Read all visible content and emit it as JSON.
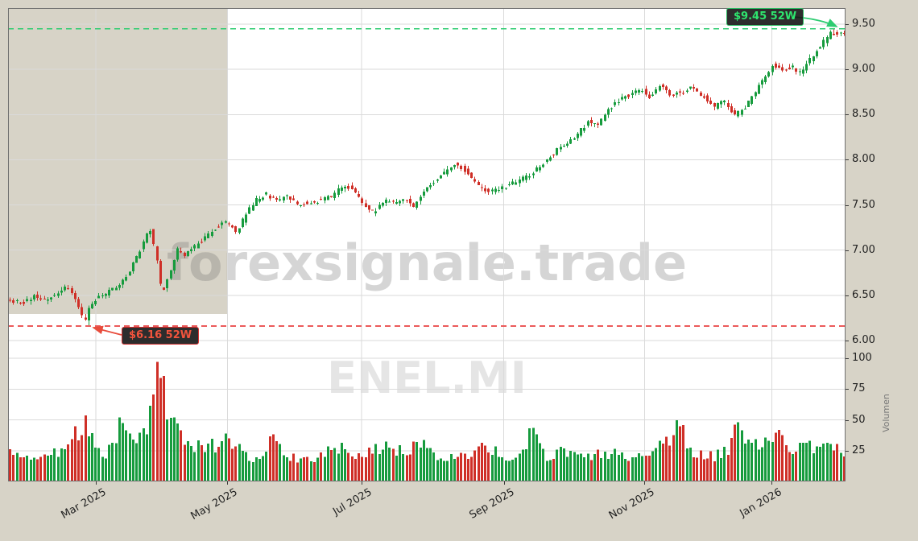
{
  "watermarks": {
    "site": "forexsignale.trade",
    "symbol": "ENEL.MI"
  },
  "annotations": {
    "high": {
      "label": "$9.45 52W",
      "price": 9.45
    },
    "low": {
      "label": "$6.16 52W",
      "price": 6.16
    }
  },
  "axes": {
    "price": {
      "ticks": [
        {
          "label": "9.50",
          "value": 9.5
        },
        {
          "label": "9.00",
          "value": 9.0
        },
        {
          "label": "8.50",
          "value": 8.5
        },
        {
          "label": "8.00",
          "value": 8.0
        },
        {
          "label": "7.50",
          "value": 7.5
        },
        {
          "label": "7.00",
          "value": 7.0
        },
        {
          "label": "6.50",
          "value": 6.5
        },
        {
          "label": "6.00",
          "value": 6.0
        }
      ]
    },
    "volume": {
      "axis_label": "Volumen",
      "ticks": [
        {
          "label": "100",
          "value": 100
        },
        {
          "label": "75",
          "value": 75
        },
        {
          "label": "50",
          "value": 50
        },
        {
          "label": "25",
          "value": 25
        }
      ]
    },
    "x": {
      "ticks": [
        {
          "label": "Mar 2025",
          "t": 0.105
        },
        {
          "label": "May 2025",
          "t": 0.262
        },
        {
          "label": "Jul 2025",
          "t": 0.422
        },
        {
          "label": "Sep 2025",
          "t": 0.592
        },
        {
          "label": "Nov 2025",
          "t": 0.76
        },
        {
          "label": "Jan 2026",
          "t": 0.912
        }
      ]
    }
  },
  "colors": {
    "background": "#d7d3c7",
    "plot_bg": "#ffffff",
    "grid": "#dadada",
    "candle_up": "#169b3d",
    "candle_down": "#cf2f27",
    "high_line": "#2ecc71",
    "low_line": "#ec5a5a"
  },
  "chart_data": {
    "type": "candlestick+volume",
    "symbol": "ENEL.MI",
    "price_ylim": [
      6.0,
      9.5
    ],
    "volume_ylim": [
      0,
      100
    ],
    "high_52w": 9.45,
    "low_52w": 6.16,
    "low_t": 0.093,
    "high_t": 0.985,
    "candles_count": 245,
    "seed": 11,
    "price_path": [
      [
        0,
        6.45
      ],
      [
        0.02,
        6.42
      ],
      [
        0.034,
        6.5
      ],
      [
        0.048,
        6.45
      ],
      [
        0.063,
        6.55
      ],
      [
        0.075,
        6.6
      ],
      [
        0.085,
        6.38
      ],
      [
        0.093,
        6.2
      ],
      [
        0.098,
        6.35
      ],
      [
        0.105,
        6.45
      ],
      [
        0.115,
        6.5
      ],
      [
        0.13,
        6.58
      ],
      [
        0.142,
        6.7
      ],
      [
        0.154,
        6.9
      ],
      [
        0.165,
        7.12
      ],
      [
        0.171,
        7.25
      ],
      [
        0.179,
        6.9
      ],
      [
        0.185,
        6.52
      ],
      [
        0.19,
        6.62
      ],
      [
        0.197,
        6.82
      ],
      [
        0.204,
        7.0
      ],
      [
        0.213,
        6.95
      ],
      [
        0.226,
        7.05
      ],
      [
        0.238,
        7.15
      ],
      [
        0.25,
        7.25
      ],
      [
        0.262,
        7.32
      ],
      [
        0.274,
        7.2
      ],
      [
        0.287,
        7.42
      ],
      [
        0.298,
        7.56
      ],
      [
        0.31,
        7.62
      ],
      [
        0.322,
        7.55
      ],
      [
        0.335,
        7.6
      ],
      [
        0.348,
        7.5
      ],
      [
        0.361,
        7.53
      ],
      [
        0.375,
        7.55
      ],
      [
        0.389,
        7.6
      ],
      [
        0.402,
        7.72
      ],
      [
        0.412,
        7.68
      ],
      [
        0.425,
        7.52
      ],
      [
        0.438,
        7.42
      ],
      [
        0.45,
        7.55
      ],
      [
        0.464,
        7.52
      ],
      [
        0.476,
        7.58
      ],
      [
        0.486,
        7.48
      ],
      [
        0.498,
        7.65
      ],
      [
        0.512,
        7.78
      ],
      [
        0.525,
        7.88
      ],
      [
        0.537,
        7.96
      ],
      [
        0.548,
        7.87
      ],
      [
        0.562,
        7.72
      ],
      [
        0.573,
        7.65
      ],
      [
        0.587,
        7.68
      ],
      [
        0.6,
        7.72
      ],
      [
        0.613,
        7.78
      ],
      [
        0.627,
        7.85
      ],
      [
        0.64,
        7.96
      ],
      [
        0.654,
        8.08
      ],
      [
        0.667,
        8.18
      ],
      [
        0.681,
        8.28
      ],
      [
        0.694,
        8.42
      ],
      [
        0.706,
        8.38
      ],
      [
        0.719,
        8.55
      ],
      [
        0.733,
        8.68
      ],
      [
        0.746,
        8.72
      ],
      [
        0.758,
        8.78
      ],
      [
        0.769,
        8.68
      ],
      [
        0.781,
        8.85
      ],
      [
        0.792,
        8.72
      ],
      [
        0.806,
        8.75
      ],
      [
        0.819,
        8.8
      ],
      [
        0.832,
        8.7
      ],
      [
        0.844,
        8.58
      ],
      [
        0.856,
        8.65
      ],
      [
        0.869,
        8.48
      ],
      [
        0.881,
        8.58
      ],
      [
        0.892,
        8.72
      ],
      [
        0.904,
        8.9
      ],
      [
        0.915,
        9.05
      ],
      [
        0.927,
        9.0
      ],
      [
        0.938,
        9.03
      ],
      [
        0.948,
        8.95
      ],
      [
        0.96,
        9.12
      ],
      [
        0.971,
        9.25
      ],
      [
        0.983,
        9.4
      ],
      [
        0.994,
        9.38
      ],
      [
        1,
        9.4
      ]
    ],
    "volume_path": [
      [
        0,
        22
      ],
      [
        0.03,
        18
      ],
      [
        0.06,
        24
      ],
      [
        0.08,
        38
      ],
      [
        0.088,
        46
      ],
      [
        0.095,
        38
      ],
      [
        0.105,
        28
      ],
      [
        0.115,
        22
      ],
      [
        0.125,
        32
      ],
      [
        0.132,
        58
      ],
      [
        0.14,
        36
      ],
      [
        0.15,
        26
      ],
      [
        0.163,
        44
      ],
      [
        0.171,
        58
      ],
      [
        0.176,
        100
      ],
      [
        0.182,
        74
      ],
      [
        0.19,
        55
      ],
      [
        0.197,
        48
      ],
      [
        0.205,
        40
      ],
      [
        0.215,
        30
      ],
      [
        0.23,
        26
      ],
      [
        0.25,
        30
      ],
      [
        0.262,
        34
      ],
      [
        0.275,
        24
      ],
      [
        0.29,
        18
      ],
      [
        0.303,
        26
      ],
      [
        0.315,
        36
      ],
      [
        0.33,
        20
      ],
      [
        0.35,
        17
      ],
      [
        0.37,
        21
      ],
      [
        0.39,
        27
      ],
      [
        0.41,
        22
      ],
      [
        0.43,
        25
      ],
      [
        0.45,
        29
      ],
      [
        0.47,
        22
      ],
      [
        0.49,
        32
      ],
      [
        0.51,
        20
      ],
      [
        0.53,
        18
      ],
      [
        0.55,
        23
      ],
      [
        0.57,
        26
      ],
      [
        0.59,
        20
      ],
      [
        0.61,
        18
      ],
      [
        0.625,
        42
      ],
      [
        0.64,
        20
      ],
      [
        0.66,
        23
      ],
      [
        0.68,
        18
      ],
      [
        0.7,
        21
      ],
      [
        0.72,
        23
      ],
      [
        0.74,
        19
      ],
      [
        0.76,
        21
      ],
      [
        0.78,
        28
      ],
      [
        0.8,
        44
      ],
      [
        0.815,
        24
      ],
      [
        0.83,
        19
      ],
      [
        0.845,
        21
      ],
      [
        0.858,
        24
      ],
      [
        0.87,
        50
      ],
      [
        0.885,
        26
      ],
      [
        0.9,
        32
      ],
      [
        0.915,
        36
      ],
      [
        0.93,
        26
      ],
      [
        0.945,
        31
      ],
      [
        0.96,
        26
      ],
      [
        0.975,
        29
      ],
      [
        0.99,
        24
      ]
    ]
  }
}
